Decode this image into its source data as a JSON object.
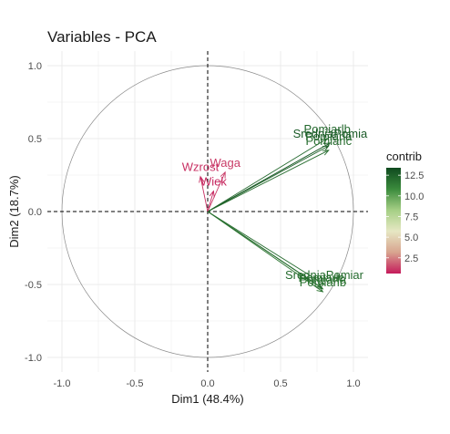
{
  "chart_data": {
    "type": "scatter",
    "subtype": "pca-variable-correlation-circle",
    "title": "Variables - PCA",
    "xlabel": "Dim1 (48.4%)",
    "ylabel": "Dim2 (18.7%)",
    "xlim": [
      -1.1,
      1.1
    ],
    "ylim": [
      -1.1,
      1.1
    ],
    "x_ticks": [
      -1.0,
      -0.5,
      0.0,
      0.5,
      1.0
    ],
    "y_ticks": [
      -1.0,
      -0.5,
      0.0,
      0.5,
      1.0
    ],
    "x_tick_labels": [
      "-1.0",
      "-0.5",
      "0.0",
      "0.5",
      "1.0"
    ],
    "y_tick_labels": [
      "-1.0",
      "-0.5",
      "0.0",
      "0.5",
      "1.0"
    ],
    "grid": true,
    "unit_circle": true,
    "variables": [
      {
        "name": "Pomiarlb",
        "x": 0.82,
        "y": 0.5,
        "contrib": 12.2
      },
      {
        "name": "SredniaPomia",
        "x": 0.84,
        "y": 0.47,
        "contrib": 12.8
      },
      {
        "name": "Pomiarla",
        "x": 0.83,
        "y": 0.45,
        "contrib": 12.5
      },
      {
        "name": "Pomiarlc",
        "x": 0.83,
        "y": 0.42,
        "contrib": 12.0
      },
      {
        "name": "Waga",
        "x": 0.12,
        "y": 0.27,
        "contrib": 1.2
      },
      {
        "name": "Wzrost",
        "x": -0.05,
        "y": 0.24,
        "contrib": 1.0
      },
      {
        "name": "Wiek",
        "x": 0.04,
        "y": 0.14,
        "contrib": 0.8
      },
      {
        "name": "SredniaPomiar",
        "x": 0.8,
        "y": -0.5,
        "contrib": 12.1
      },
      {
        "name": "Pomiarlc",
        "x": 0.78,
        "y": -0.52,
        "contrib": 11.8
      },
      {
        "name": "Pomiarla",
        "x": 0.79,
        "y": -0.53,
        "contrib": 12.0
      },
      {
        "name": "Pomiarlb",
        "x": 0.79,
        "y": -0.55,
        "contrib": 11.7
      }
    ],
    "legend": {
      "title": "contrib",
      "position": "right",
      "ticks": [
        2.5,
        5.0,
        7.5,
        10.0,
        12.5
      ],
      "tick_labels": [
        "2.5",
        "5.0",
        "7.5",
        "10.0",
        "12.5"
      ],
      "range": [
        0.6,
        13.4
      ],
      "colors": [
        "#c51b5b",
        "#d8a48f",
        "#e6e7c3",
        "#a5cf85",
        "#3a8a3c",
        "#0f4a1f"
      ]
    }
  }
}
